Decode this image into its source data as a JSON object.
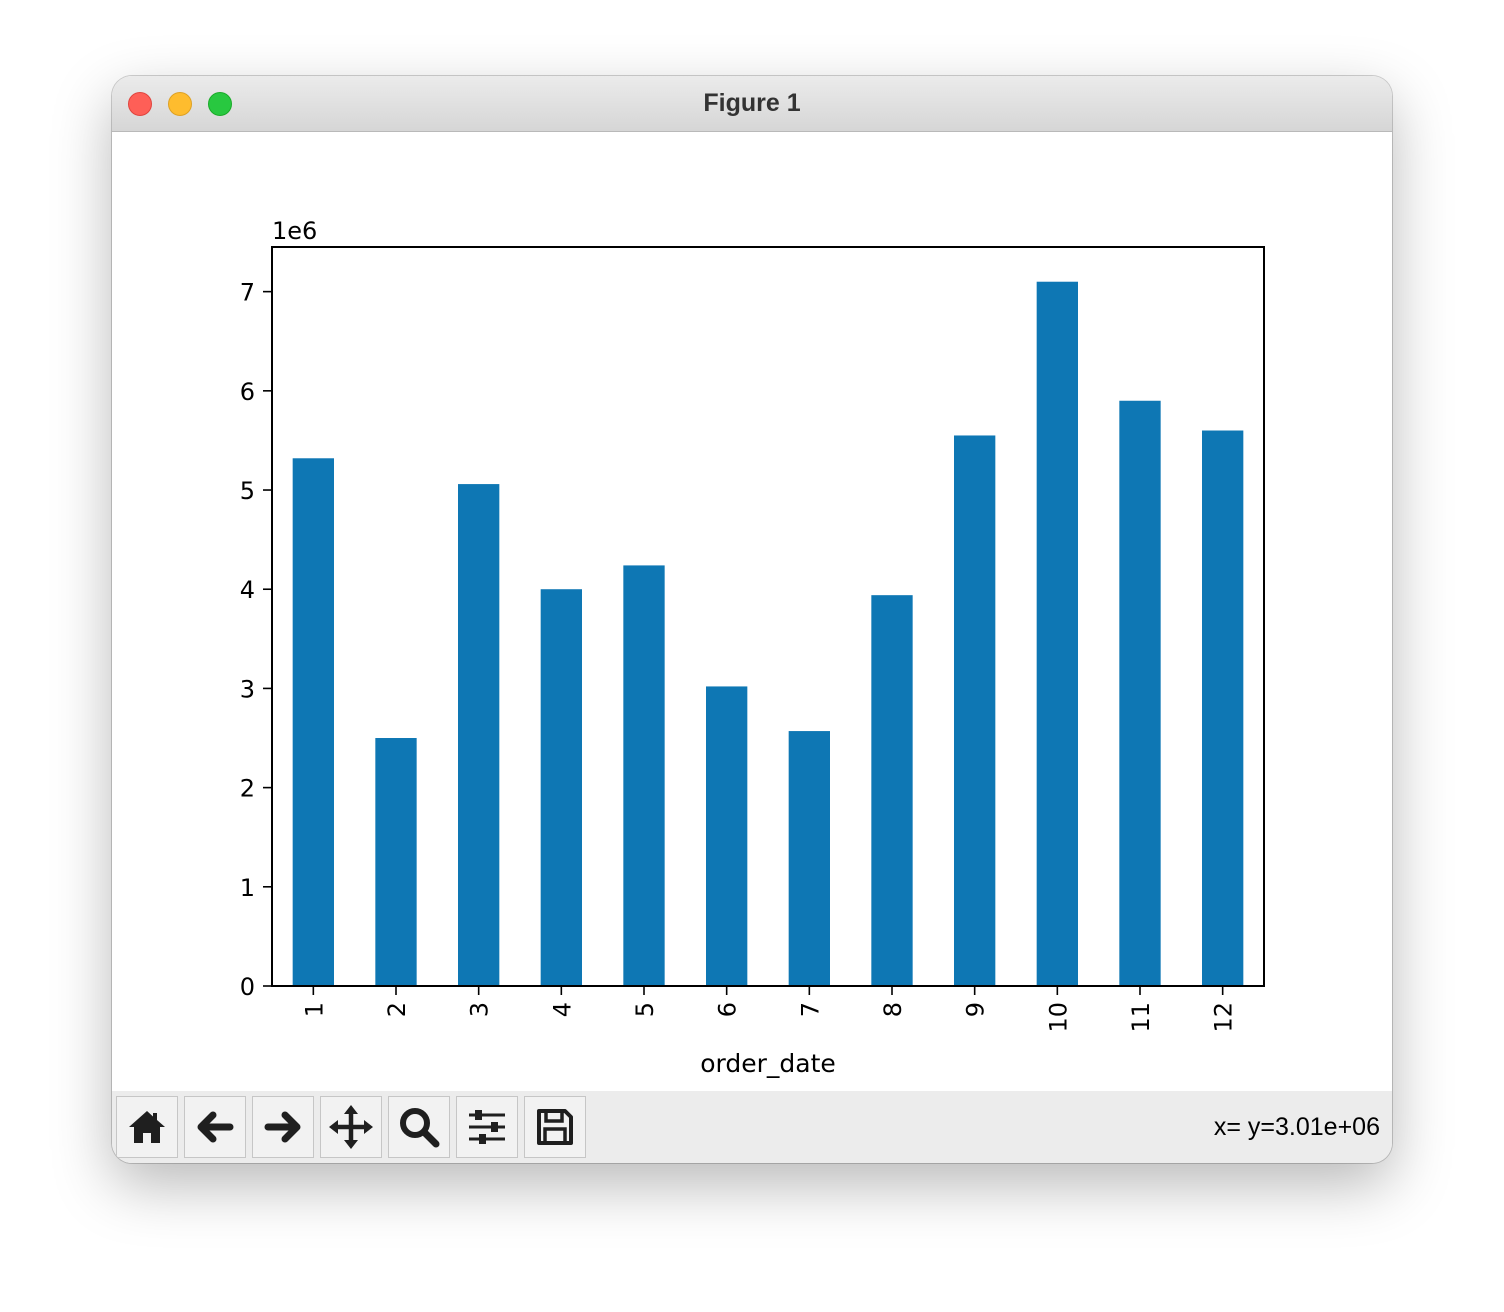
{
  "window": {
    "title": "Figure 1"
  },
  "toolbar": {
    "buttons": [
      {
        "name": "home-button",
        "icon": "home-icon"
      },
      {
        "name": "back-button",
        "icon": "arrow-left-icon"
      },
      {
        "name": "forward-button",
        "icon": "arrow-right-icon"
      },
      {
        "name": "pan-button",
        "icon": "move-arrows-icon"
      },
      {
        "name": "zoom-button",
        "icon": "magnifier-icon"
      },
      {
        "name": "configure-subplots-button",
        "icon": "sliders-icon"
      },
      {
        "name": "save-button",
        "icon": "floppy-disk-icon"
      }
    ],
    "coordinates": "x= y=3.01e+06"
  },
  "chart_data": {
    "type": "bar",
    "categories": [
      "1",
      "2",
      "3",
      "4",
      "5",
      "6",
      "7",
      "8",
      "9",
      "10",
      "11",
      "12"
    ],
    "values": [
      5320000,
      2500000,
      5060000,
      4000000,
      4240000,
      3020000,
      2570000,
      3940000,
      5550000,
      7100000,
      5900000,
      5600000
    ],
    "xlabel": "order_date",
    "ylabel": "",
    "y_offset_label": "1e6",
    "ylim": [
      0,
      7450000
    ],
    "yticks": [
      0,
      1000000,
      2000000,
      3000000,
      4000000,
      5000000,
      6000000,
      7000000
    ],
    "ytick_labels": [
      "0",
      "1",
      "2",
      "3",
      "4",
      "5",
      "6",
      "7"
    ],
    "xtick_rotation": "vertical",
    "bar_color": "#0e77b4",
    "grid": false,
    "legend": "none"
  }
}
